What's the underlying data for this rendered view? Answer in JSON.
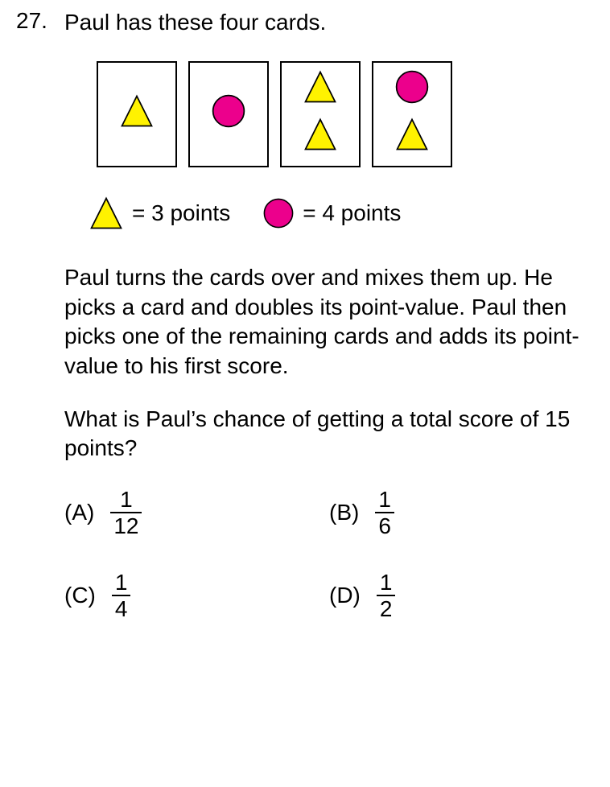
{
  "question_number": "27.",
  "intro_text": "Paul has these four cards.",
  "colors": {
    "triangle_fill": "#fff200",
    "triangle_stroke": "#000000",
    "circle_fill": "#ec008c",
    "circle_stroke": "#000000",
    "card_border": "#000000",
    "text": "#000000",
    "background": "#ffffff"
  },
  "cards": [
    {
      "shapes": [
        "triangle"
      ]
    },
    {
      "shapes": [
        "circle"
      ]
    },
    {
      "shapes": [
        "triangle",
        "triangle"
      ]
    },
    {
      "shapes": [
        "circle",
        "triangle"
      ]
    }
  ],
  "legend": {
    "triangle_label": " = 3 points",
    "circle_label": " = 4 points"
  },
  "body_para": "Paul turns the cards over and mixes them up. He picks a card and doubles its point-value. Paul then picks one of the remaining cards and adds its point-value to his first score.",
  "question_para": "What is Paul’s chance of getting a total score of 15 points?",
  "choices": {
    "A": {
      "label": "(A)",
      "num": "1",
      "den": "12"
    },
    "B": {
      "label": "(B)",
      "num": "1",
      "den": "6"
    },
    "C": {
      "label": "(C)",
      "num": "1",
      "den": "4"
    },
    "D": {
      "label": "(D)",
      "num": "1",
      "den": "2"
    }
  },
  "shape_sizes": {
    "card_triangle": 44,
    "card_circle": 44,
    "legend_triangle": 44,
    "legend_circle": 40
  }
}
